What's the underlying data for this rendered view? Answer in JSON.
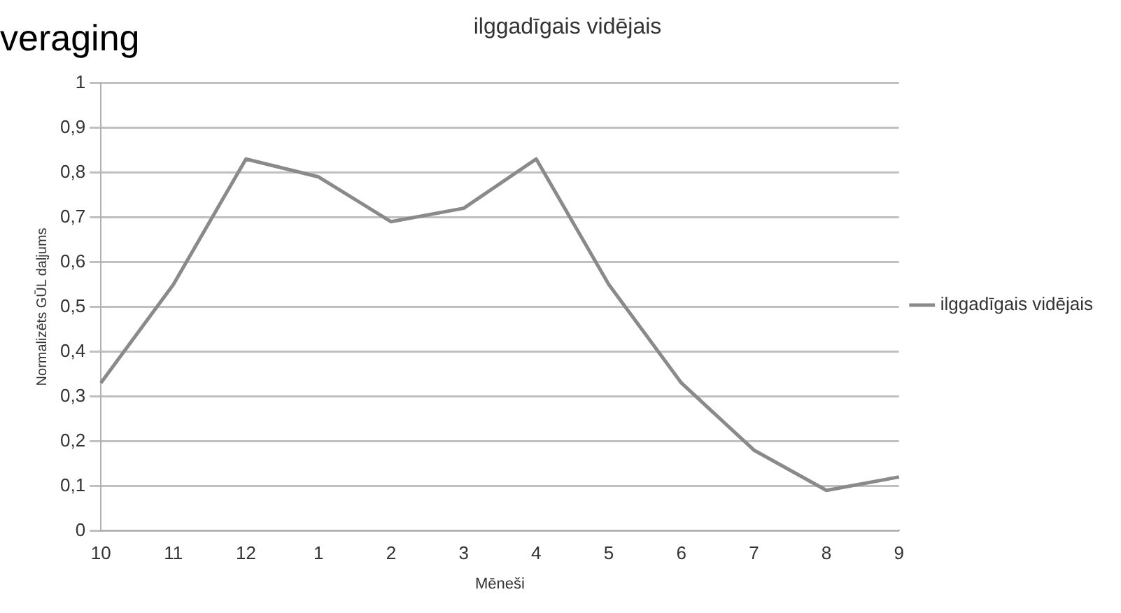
{
  "chart_data": {
    "type": "line",
    "title": "ilggadīgais vidējais",
    "xlabel": "Mēneši",
    "ylabel": "Normalizēts GŪL daļjums",
    "annotations": [
      "veraging"
    ],
    "categories": [
      "10",
      "11",
      "12",
      "1",
      "2",
      "3",
      "4",
      "5",
      "6",
      "7",
      "8",
      "9"
    ],
    "series": [
      {
        "name": "ilggadīgais vidējais",
        "color": "#8a8a8a",
        "values": [
          0.33,
          0.55,
          0.83,
          0.79,
          0.69,
          0.72,
          0.83,
          0.55,
          0.33,
          0.18,
          0.09,
          0.12
        ]
      }
    ],
    "ylim": [
      0,
      1
    ],
    "yticks": [
      0,
      {
        "value": 0.1,
        "label": "0,1"
      },
      {
        "value": 0.2,
        "label": "0,2"
      },
      {
        "value": 0.3,
        "label": "0,3"
      },
      {
        "value": 0.4,
        "label": "0,4"
      },
      {
        "value": 0.5,
        "label": "0,5"
      },
      {
        "value": 0.6,
        "label": "0,6"
      },
      {
        "value": 0.7,
        "label": "0,7"
      },
      {
        "value": 0.8,
        "label": "0,8"
      },
      {
        "value": 0.9,
        "label": "0,9"
      },
      1
    ],
    "grid": "y",
    "legend": "right",
    "marker": "none",
    "line_style": "solid"
  }
}
